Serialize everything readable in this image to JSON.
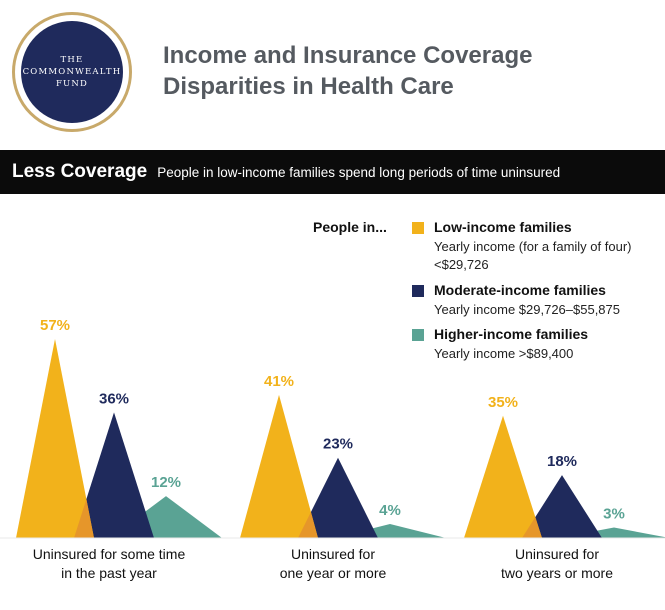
{
  "logo": {
    "lines": [
      "THE",
      "COMMONWEALTH",
      "FUND"
    ],
    "color": "#1f2a5c",
    "ring_color": "#c8a96a"
  },
  "title_lines": [
    "Income and Insurance Coverage",
    "Disparities in Health Care"
  ],
  "banner": {
    "title": "Less Coverage",
    "subtitle": "People in low-income families spend long periods of time uninsured"
  },
  "legend": {
    "prefix": "People in...",
    "items": [
      {
        "name": "Low-income families",
        "desc": "Yearly income (for a family of four) <$29,726",
        "color": "#f2b21b"
      },
      {
        "name": "Moderate-income families",
        "desc": "Yearly income $29,726–$55,875",
        "color": "#1f2a5c"
      },
      {
        "name": "Higher-income families",
        "desc": "Yearly income >$89,400",
        "color": "#5aa394"
      }
    ]
  },
  "chart_data": {
    "type": "bar",
    "title": "Less Coverage",
    "categories": [
      [
        "Uninsured for some time",
        "in the past year"
      ],
      [
        "Uninsured for",
        "one year or more"
      ],
      [
        "Uninsured for",
        "two years or more"
      ]
    ],
    "series": [
      {
        "name": "Low-income families",
        "values": [
          57,
          41,
          35
        ],
        "labels": [
          "57%",
          "41%",
          "35%"
        ],
        "color": "#f2b21b"
      },
      {
        "name": "Moderate-income families",
        "values": [
          36,
          23,
          18
        ],
        "labels": [
          "36%",
          "23%",
          "18%"
        ],
        "color": "#1f2a5c"
      },
      {
        "name": "Higher-income families",
        "values": [
          12,
          4,
          3
        ],
        "labels": [
          "12%",
          "4%",
          "3%"
        ],
        "color": "#5aa394"
      }
    ],
    "overlap_color": "#e6962a",
    "ylim": [
      0,
      60
    ],
    "grid": false,
    "legend_position": "top-right"
  }
}
